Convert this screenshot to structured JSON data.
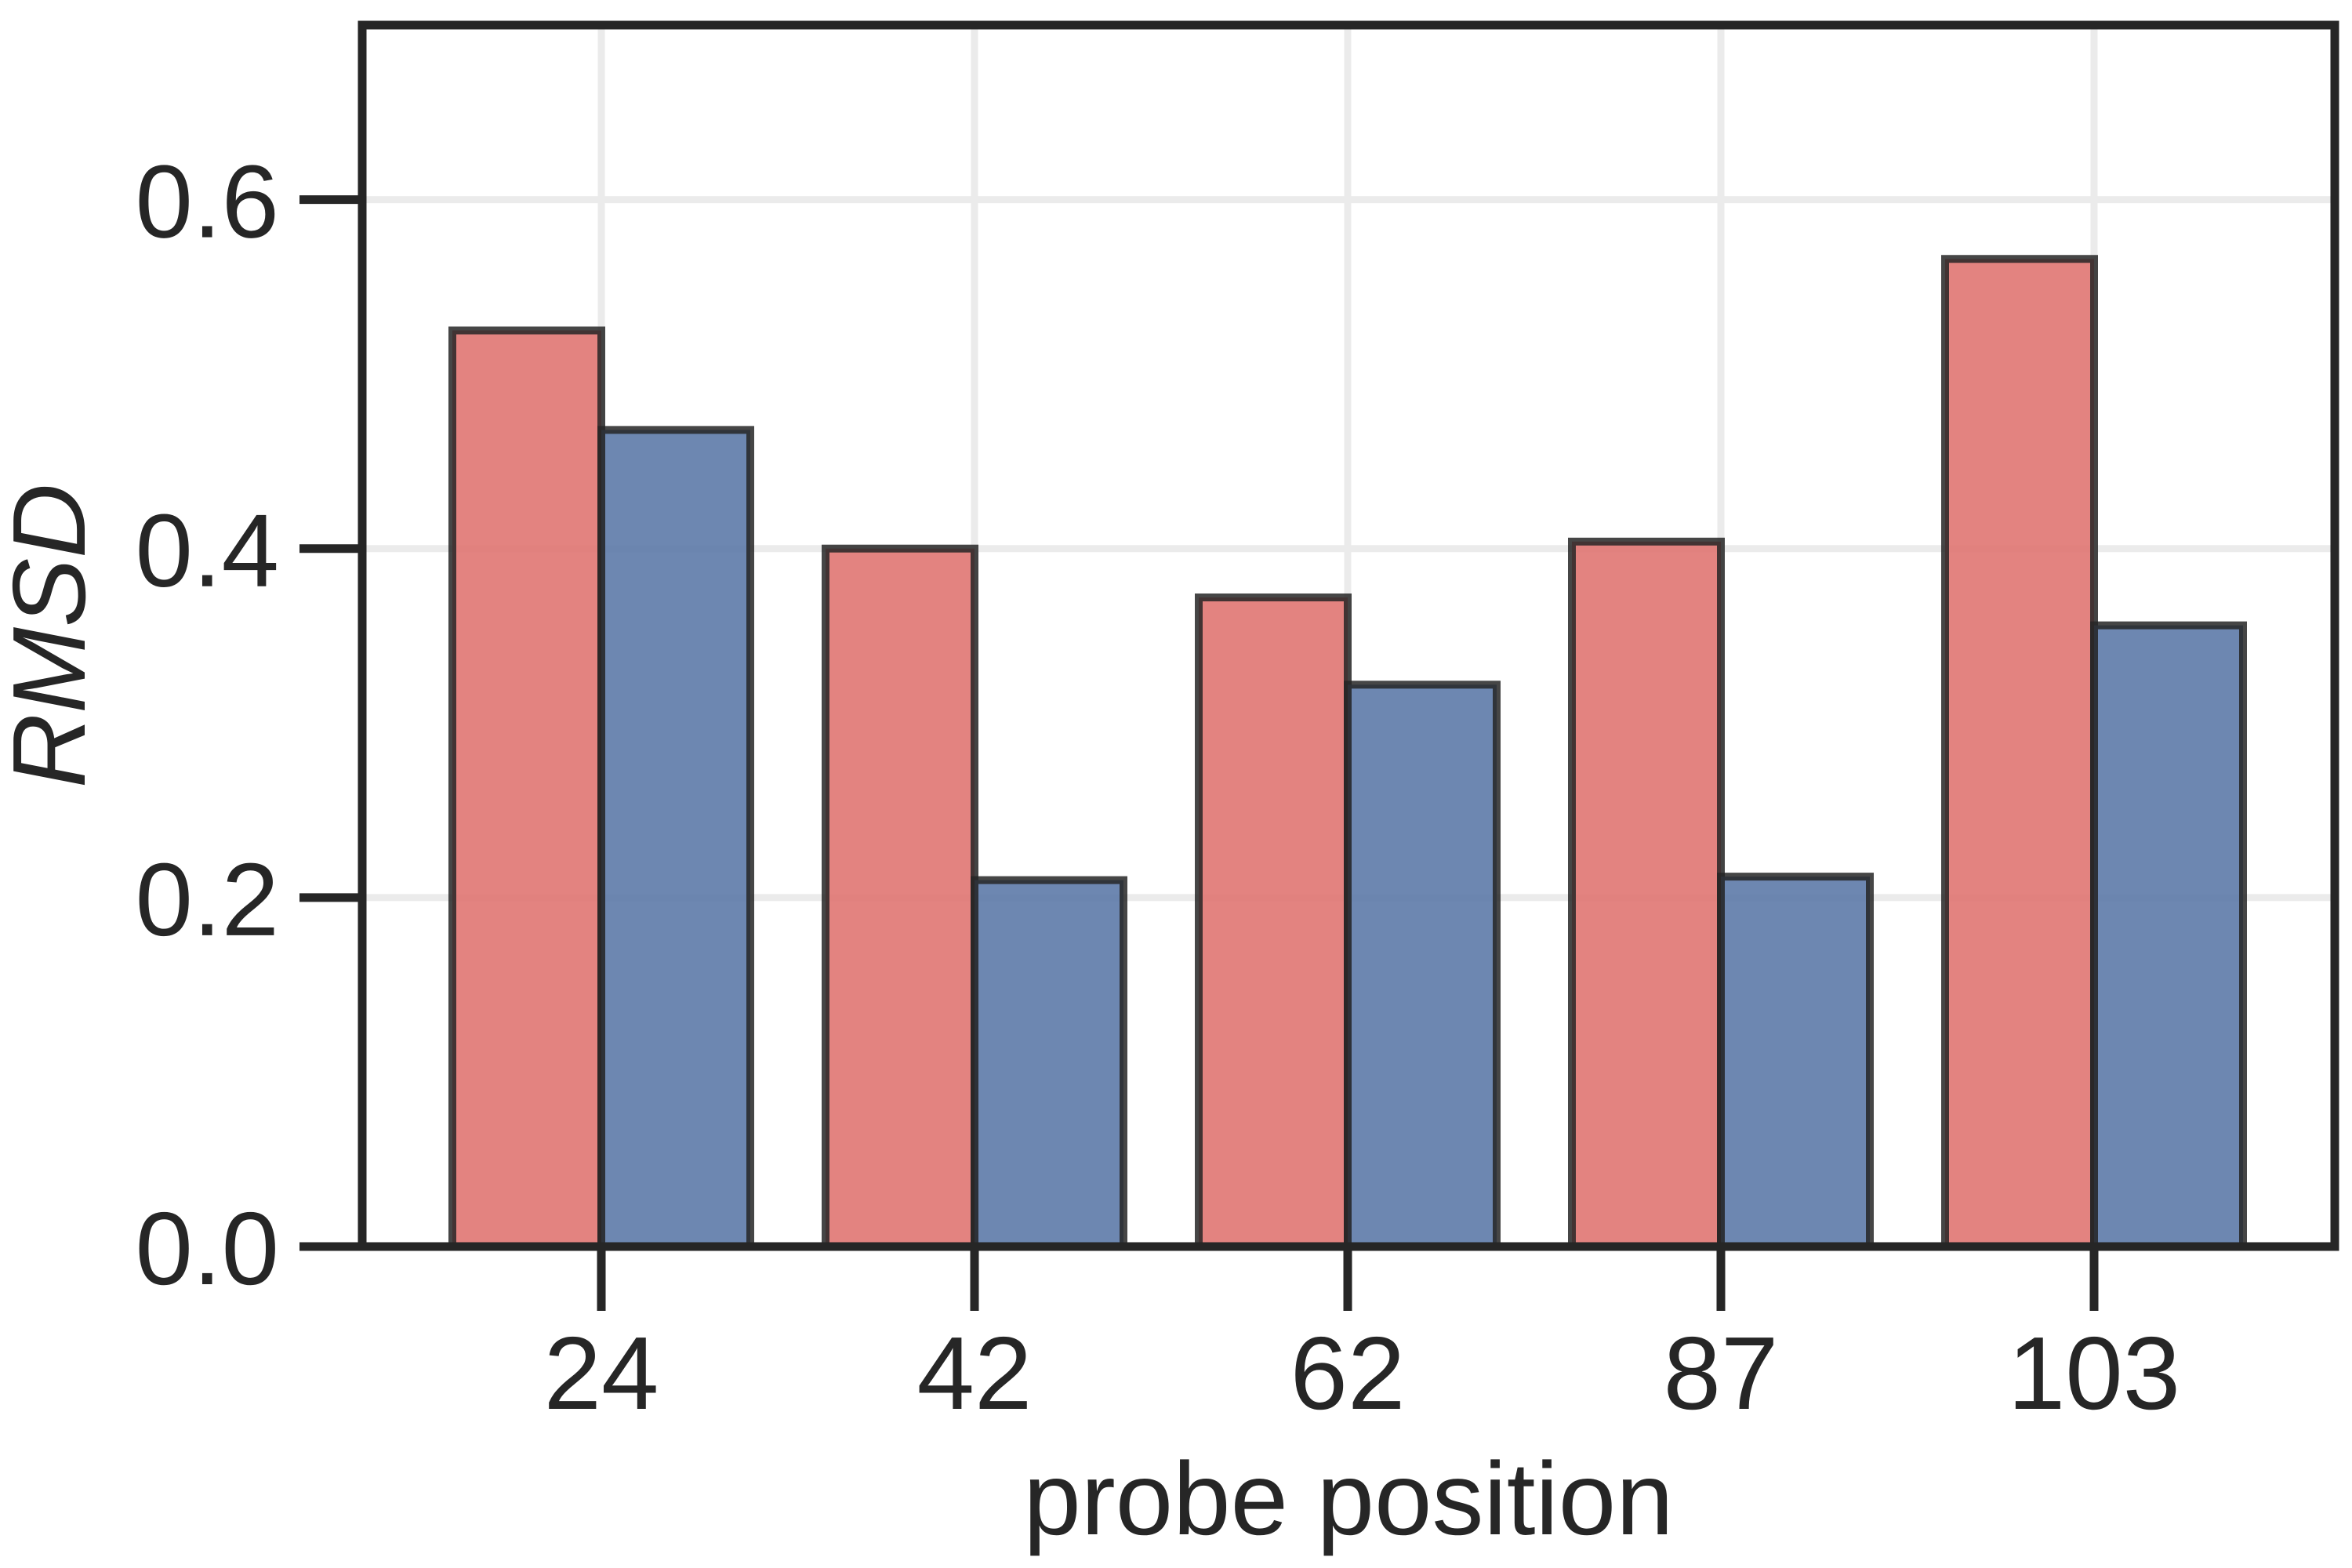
{
  "chart_data": {
    "type": "bar",
    "title": "",
    "xlabel": "probe position",
    "ylabel": "RMSD",
    "categories": [
      "24",
      "42",
      "62",
      "87",
      "103"
    ],
    "series": [
      {
        "values": [
          0.525,
          0.4,
          0.372,
          0.404,
          0.566
        ],
        "color": "#e07572"
      },
      {
        "values": [
          0.468,
          0.21,
          0.322,
          0.212,
          0.356
        ],
        "color": "#5d7aa8"
      }
    ],
    "ylim": [
      0,
      0.7
    ],
    "yticks": [
      "0.0",
      "0.2",
      "0.4",
      "0.6"
    ],
    "grid": true,
    "legend": "none"
  }
}
